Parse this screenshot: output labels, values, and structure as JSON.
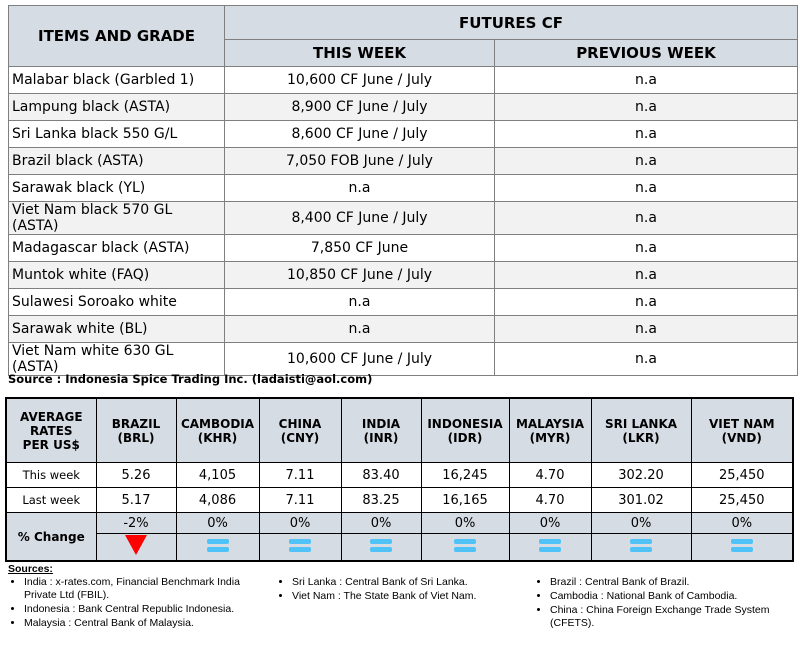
{
  "futures": {
    "header_items": "ITEMS AND GRADE",
    "header_group": "FUTURES CF",
    "header_this": "THIS WEEK",
    "header_prev": "PREVIOUS WEEK",
    "rows": [
      {
        "item": "Malabar black (Garbled 1)",
        "this": "10,600 CF June / July",
        "prev": "n.a"
      },
      {
        "item": "Lampung black (ASTA)",
        "this": "8,900 CF June / July",
        "prev": "n.a"
      },
      {
        "item": "Sri Lanka black 550 G/L",
        "this": "8,600 CF June / July",
        "prev": "n.a"
      },
      {
        "item": "Brazil black (ASTA)",
        "this": "7,050 FOB June / July",
        "prev": "n.a"
      },
      {
        "item": "Sarawak black (YL)",
        "this": "n.a",
        "prev": "n.a"
      },
      {
        "item": "Viet Nam black 570 GL (ASTA)",
        "this": "8,400 CF June / July",
        "prev": "n.a"
      },
      {
        "item": "Madagascar black (ASTA)",
        "this": "7,850 CF June",
        "prev": "n.a"
      },
      {
        "item": "Muntok white (FAQ)",
        "this": "10,850 CF June / July",
        "prev": "n.a"
      },
      {
        "item": "Sulawesi Soroako white",
        "this": "n.a",
        "prev": "n.a"
      },
      {
        "item": "Sarawak  white (BL)",
        "this": "n.a",
        "prev": "n.a"
      },
      {
        "item": "Viet Nam white 630 GL (ASTA)",
        "this": "10,600 CF June / July",
        "prev": "n.a"
      }
    ]
  },
  "source": "Source : Indonesia Spice Trading Inc. (ladaisti@aol.com)",
  "rates": {
    "corner": [
      "AVERAGE",
      "RATES",
      "PER US$"
    ],
    "currencies": [
      {
        "name": "BRAZIL",
        "code": "(BRL)",
        "this": "5.26",
        "last": "5.17",
        "change": "-2%",
        "trend": "down"
      },
      {
        "name": "CAMBODIA",
        "code": "(KHR)",
        "this": "4,105",
        "last": "4,086",
        "change": "0%",
        "trend": "equal"
      },
      {
        "name": "CHINA",
        "code": "(CNY)",
        "this": "7.11",
        "last": "7.11",
        "change": "0%",
        "trend": "equal"
      },
      {
        "name": "INDIA",
        "code": "(INR)",
        "this": "83.40",
        "last": "83.25",
        "change": "0%",
        "trend": "equal"
      },
      {
        "name": "INDONESIA",
        "code": "(IDR)",
        "this": "16,245",
        "last": "16,165",
        "change": "0%",
        "trend": "equal"
      },
      {
        "name": "MALAYSIA",
        "code": "(MYR)",
        "this": "4.70",
        "last": "4.70",
        "change": "0%",
        "trend": "equal"
      },
      {
        "name": "SRI LANKA",
        "code": "(LKR)",
        "this": "302.20",
        "last": "301.02",
        "change": "0%",
        "trend": "equal"
      },
      {
        "name": "VIET NAM",
        "code": "(VND)",
        "this": "25,450",
        "last": "25,450",
        "change": "0%",
        "trend": "equal"
      }
    ],
    "this_label": "This week",
    "last_label": "Last week",
    "change_label": "% Change",
    "colors": {
      "down": "#ff0000",
      "equal": "#4fc3f7",
      "header": "#d6dce4"
    }
  },
  "sources": {
    "title": "Sources:",
    "col1": [
      "India : x-rates.com, Financial Benchmark India Private Ltd (FBIL).",
      "Indonesia : Bank Central Republic Indonesia.",
      "Malaysia : Central Bank of Malaysia."
    ],
    "col2": [
      "Sri Lanka : Central Bank of Sri Lanka.",
      "Viet Nam : The State Bank of Viet Nam."
    ],
    "col3": [
      "Brazil :  Central Bank of Brazil.",
      "Cambodia : National Bank of Cambodia.",
      "China : China Foreign Exchange Trade System (CFETS)."
    ]
  }
}
